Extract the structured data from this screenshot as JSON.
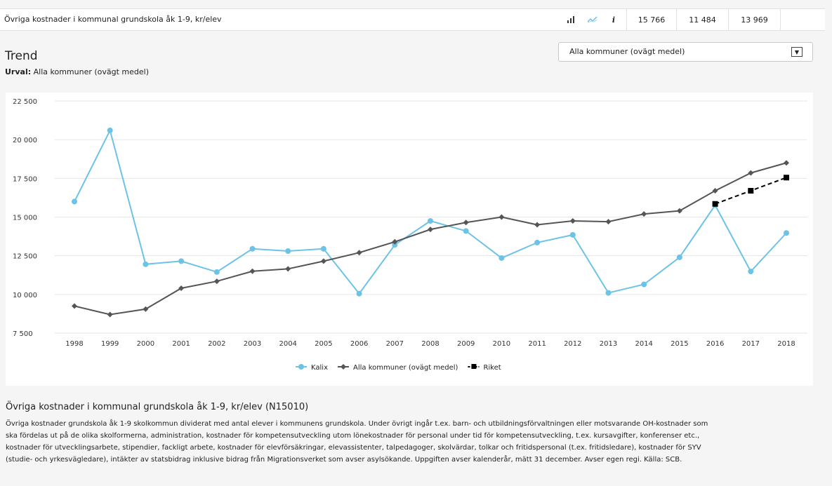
{
  "topbar": {
    "title": "Övriga kostnader i kommunal grundskola åk 1-9, kr/elev",
    "icons": [
      "bar-chart-icon",
      "line-chart-icon",
      "info-icon"
    ],
    "values": [
      "15 766",
      "11 484",
      "13 969"
    ]
  },
  "trend": {
    "heading": "Trend",
    "urval_label": "Urval:",
    "urval_value": "Alla kommuner (ovägt medel)"
  },
  "select": {
    "value": "Alla kommuner (ovägt medel)"
  },
  "chart_data": {
    "type": "line",
    "title": "",
    "xlabel": "",
    "ylabel": "",
    "ylim": [
      7500,
      22500
    ],
    "yticks": [
      7500,
      10000,
      12500,
      15000,
      17500,
      20000,
      22500
    ],
    "ytick_labels": [
      "7 500",
      "10 000",
      "12 500",
      "15 000",
      "17 500",
      "20 000",
      "22 500"
    ],
    "x": [
      "1998",
      "1999",
      "2000",
      "2001",
      "2002",
      "2003",
      "2004",
      "2005",
      "2006",
      "2007",
      "2008",
      "2009",
      "2010",
      "2011",
      "2012",
      "2013",
      "2014",
      "2015",
      "2016",
      "2017",
      "2018"
    ],
    "grid": true,
    "legend_position": "bottom",
    "series": [
      {
        "name": "Kalix",
        "color": "#6cc3e6",
        "marker": "circle",
        "dashed": false,
        "values": [
          16000,
          20600,
          11950,
          12150,
          11450,
          12950,
          12800,
          12950,
          10050,
          13200,
          14750,
          14100,
          12350,
          13350,
          13850,
          10100,
          10650,
          12400,
          15766,
          11484,
          13969
        ]
      },
      {
        "name": "Alla kommuner (ovägt medel)",
        "color": "#555555",
        "marker": "diamond",
        "dashed": false,
        "values": [
          9250,
          8700,
          9050,
          10400,
          10850,
          11500,
          11650,
          12150,
          12700,
          13400,
          14200,
          14650,
          15000,
          14500,
          14750,
          14700,
          15200,
          15400,
          16700,
          17850,
          18500
        ]
      },
      {
        "name": "Riket",
        "color": "#000000",
        "marker": "square",
        "dashed": true,
        "values": [
          null,
          null,
          null,
          null,
          null,
          null,
          null,
          null,
          null,
          null,
          null,
          null,
          null,
          null,
          null,
          null,
          null,
          null,
          15850,
          16700,
          17550
        ]
      }
    ]
  },
  "description": {
    "title": "Övriga kostnader i kommunal grundskola åk 1-9, kr/elev (N15010)",
    "lines": [
      "Övriga kostnader grundskola åk 1-9 skolkommun dividerat med antal elever i kommunens grundskola. Under övrigt ingår t.ex. barn- och utbildningsförvaltningen eller motsvarande OH-kostnader som",
      "ska fördelas ut på de olika skolformerna, administration, kostnader för kompetensutveckling utom lönekostnader för personal under tid för kompetensutveckling, t.ex. kursavgifter, konferenser etc.,",
      "kostnader för utvecklingsarbete, stipendier, fackligt arbete, kostnader för elevförsäkringar, elevassistenter, talpedagoger, skolvärdar, tolkar och fritidspersonal (t.ex. fritidsledare), kostnader för SYV",
      "(studie- och yrkesvägledare), intäkter av statsbidrag inklusive bidrag från Migrationsverket som avser asylsökande. Uppgiften avser kalenderår, mätt 31 december. Avser egen regi. Källa: SCB."
    ]
  }
}
